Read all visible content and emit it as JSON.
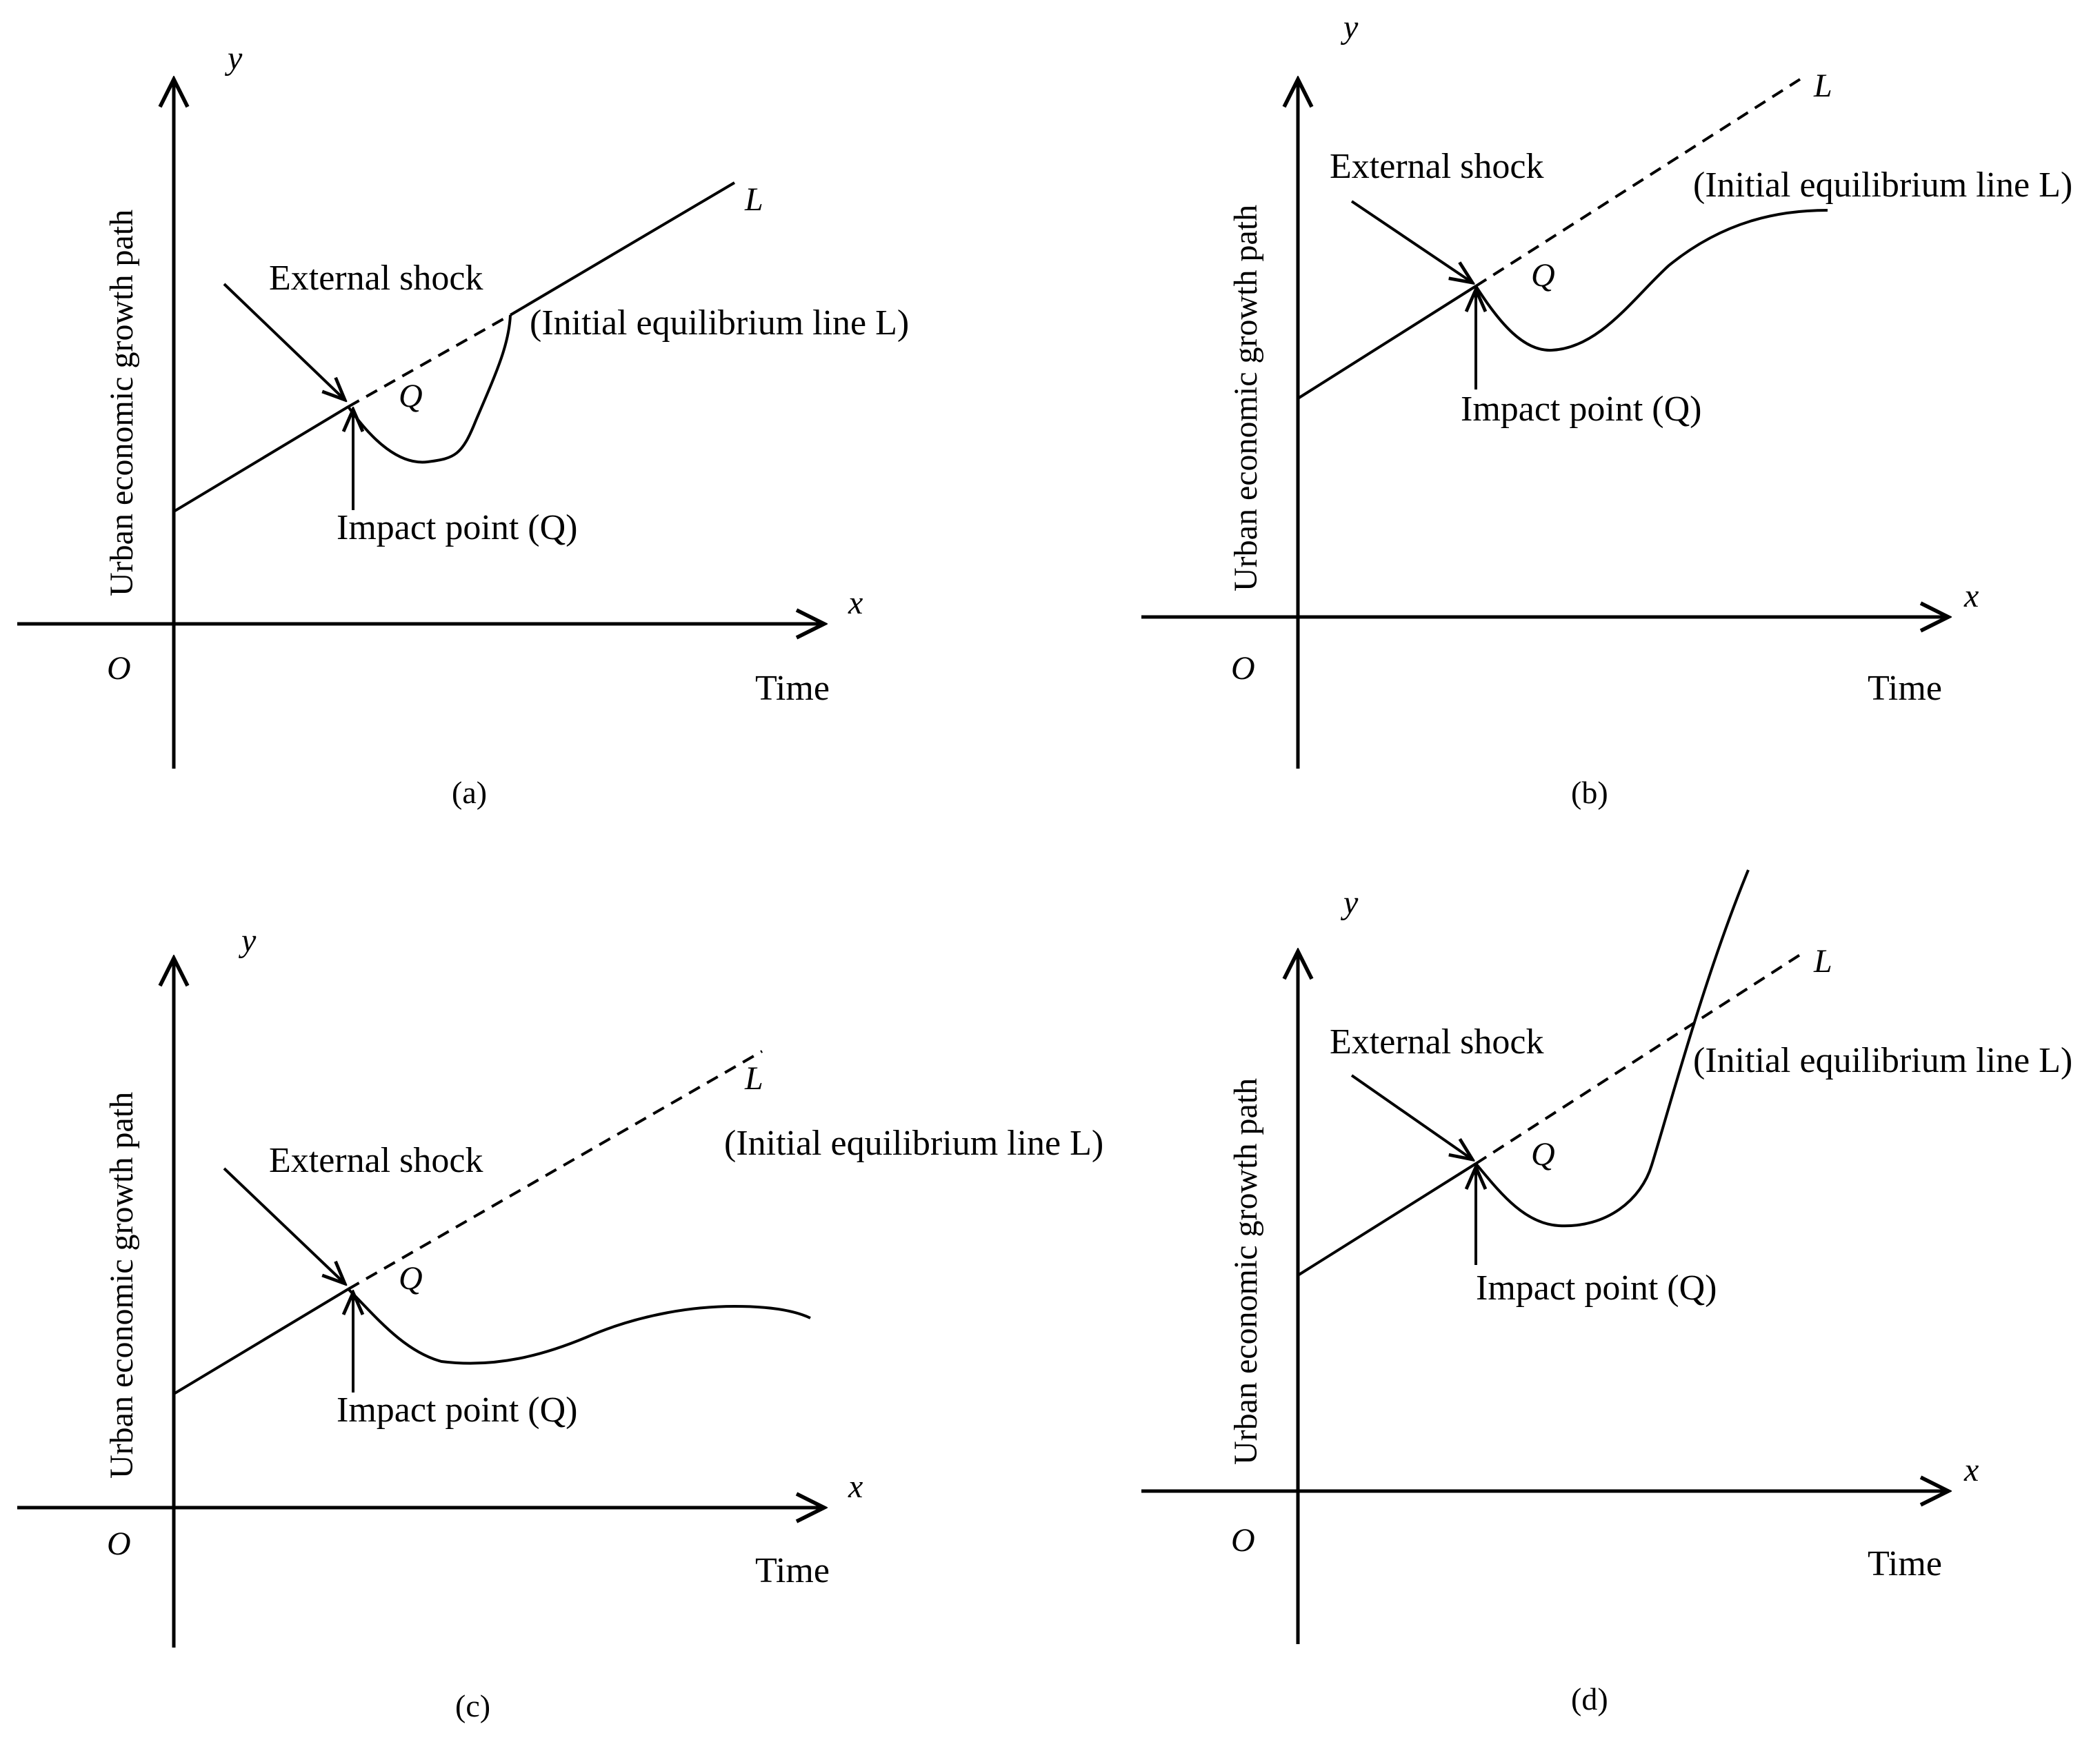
{
  "figure": {
    "panels": [
      {
        "id": "a",
        "caption": "(a)",
        "ylabel": "Urban economic growth path",
        "y_axis_letter": "y",
        "x_axis_letter": "x",
        "origin_label": "O",
        "xlabel": "Time",
        "shock_label": "External shock",
        "impact_label": "Impact point (Q)",
        "q_label": "Q",
        "line_label": "L",
        "equilibrium_label": "(Initial equilibrium line L)",
        "recovery_type": "sharp rebound rejoining line L"
      },
      {
        "id": "b",
        "caption": "(b)",
        "ylabel": "Urban economic growth path",
        "y_axis_letter": "y",
        "x_axis_letter": "x",
        "origin_label": "O",
        "xlabel": "Time",
        "shock_label": "External shock",
        "impact_label": "Impact point (Q)",
        "q_label": "Q",
        "line_label": "L",
        "equilibrium_label": "(Initial equilibrium line L)",
        "recovery_type": "partial recovery below line L"
      },
      {
        "id": "c",
        "caption": "(c)",
        "ylabel": "Urban economic growth path",
        "y_axis_letter": "y",
        "x_axis_letter": "x",
        "origin_label": "O",
        "xlabel": "Time",
        "shock_label": "External shock",
        "impact_label": "Impact point (Q)",
        "q_label": "Q",
        "line_label": "L",
        "equilibrium_label": "(Initial equilibrium line L)",
        "recovery_type": "stagnation at lower level"
      },
      {
        "id": "d",
        "caption": "(d)",
        "ylabel": "Urban economic growth path",
        "y_axis_letter": "y",
        "x_axis_letter": "x",
        "origin_label": "O",
        "xlabel": "Time",
        "shock_label": "External shock",
        "impact_label": "Impact point (Q)",
        "q_label": "Q",
        "line_label": "L",
        "equilibrium_label": "(Initial equilibrium line L)",
        "recovery_type": "rebound exceeding line L"
      }
    ],
    "colors": {
      "ink": "#000000",
      "background": "#ffffff"
    }
  }
}
